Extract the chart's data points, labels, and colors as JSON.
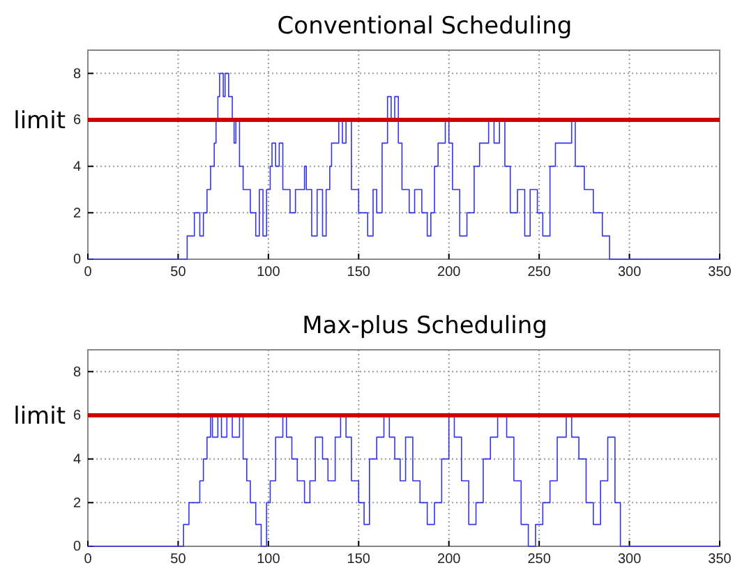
{
  "chart_data": [
    {
      "type": "step",
      "title": "Conventional Scheduling",
      "xlim": [
        0,
        350
      ],
      "xticks": [
        0,
        50,
        100,
        150,
        200,
        250,
        300,
        350
      ],
      "ylim": [
        0,
        9
      ],
      "yticks": [
        0,
        2,
        4,
        6,
        8
      ],
      "grid": true,
      "ref_lines": [
        {
          "axis": "y",
          "value": 6,
          "label": "limit",
          "color": "#cc0000"
        }
      ],
      "series": [
        {
          "color": "#3333ee",
          "x": [
            0,
            55,
            59,
            62,
            64,
            66,
            68,
            70,
            71,
            72,
            73,
            75,
            76,
            78,
            80,
            81,
            82,
            84,
            86,
            90,
            93,
            95,
            97,
            99,
            101,
            102,
            104,
            106,
            108,
            112,
            115,
            120,
            121,
            124,
            127,
            130,
            132,
            134,
            135,
            139,
            141,
            143,
            146,
            150,
            155,
            158,
            160,
            163,
            166,
            168,
            170,
            172,
            174,
            178,
            181,
            185,
            188,
            190,
            192,
            194,
            198,
            200,
            202,
            206,
            210,
            214,
            217,
            222,
            225,
            228,
            231,
            234,
            238,
            242,
            245,
            249,
            252,
            256,
            259,
            268,
            270,
            275,
            280,
            285,
            289,
            350
          ],
          "values": [
            0,
            1,
            2,
            1,
            2,
            3,
            4,
            5,
            6,
            7,
            8,
            7,
            8,
            7,
            6,
            5,
            6,
            4,
            3,
            2,
            1,
            3,
            1,
            3,
            4,
            5,
            4,
            5,
            3,
            2,
            3,
            4,
            3,
            1,
            3,
            1,
            3,
            4,
            5,
            6,
            5,
            6,
            3,
            2,
            1,
            3,
            2,
            5,
            7,
            6,
            7,
            5,
            3,
            2,
            3,
            2,
            1,
            2,
            4,
            5,
            6,
            5,
            3,
            1,
            2,
            4,
            5,
            6,
            5,
            6,
            4,
            2,
            3,
            1,
            3,
            2,
            1,
            4,
            5,
            6,
            4,
            3,
            2,
            1,
            0,
            0
          ]
        }
      ]
    },
    {
      "type": "step",
      "title": "Max-plus Scheduling",
      "xlim": [
        0,
        350
      ],
      "xticks": [
        0,
        50,
        100,
        150,
        200,
        250,
        300,
        350
      ],
      "ylim": [
        0,
        9
      ],
      "yticks": [
        0,
        2,
        4,
        6,
        8
      ],
      "grid": true,
      "ref_lines": [
        {
          "axis": "y",
          "value": 6,
          "label": "limit",
          "color": "#cc0000"
        }
      ],
      "series": [
        {
          "color": "#3333ee",
          "x": [
            0,
            53,
            56,
            62,
            64,
            66,
            68,
            69,
            72,
            74,
            77,
            80,
            84,
            86,
            88,
            90,
            93,
            96,
            99,
            101,
            104,
            108,
            110,
            113,
            116,
            120,
            123,
            126,
            130,
            133,
            137,
            140,
            143,
            146,
            150,
            153,
            156,
            160,
            164,
            167,
            170,
            173,
            176,
            180,
            184,
            188,
            192,
            196,
            200,
            203,
            207,
            211,
            215,
            219,
            223,
            227,
            232,
            236,
            240,
            244,
            248,
            252,
            256,
            260,
            265,
            268,
            272,
            276,
            280,
            284,
            288,
            292,
            295,
            350
          ],
          "values": [
            0,
            1,
            2,
            3,
            4,
            5,
            6,
            5,
            6,
            5,
            6,
            5,
            6,
            4,
            3,
            2,
            1,
            0,
            2,
            3,
            5,
            6,
            5,
            4,
            3,
            2,
            3,
            5,
            4,
            3,
            5,
            6,
            5,
            3,
            2,
            1,
            4,
            5,
            6,
            5,
            4,
            3,
            5,
            3,
            2,
            1,
            2,
            4,
            6,
            5,
            3,
            1,
            2,
            4,
            5,
            6,
            5,
            3,
            1,
            0,
            1,
            2,
            3,
            5,
            6,
            5,
            4,
            2,
            1,
            3,
            5,
            2,
            0,
            0
          ]
        }
      ]
    }
  ]
}
